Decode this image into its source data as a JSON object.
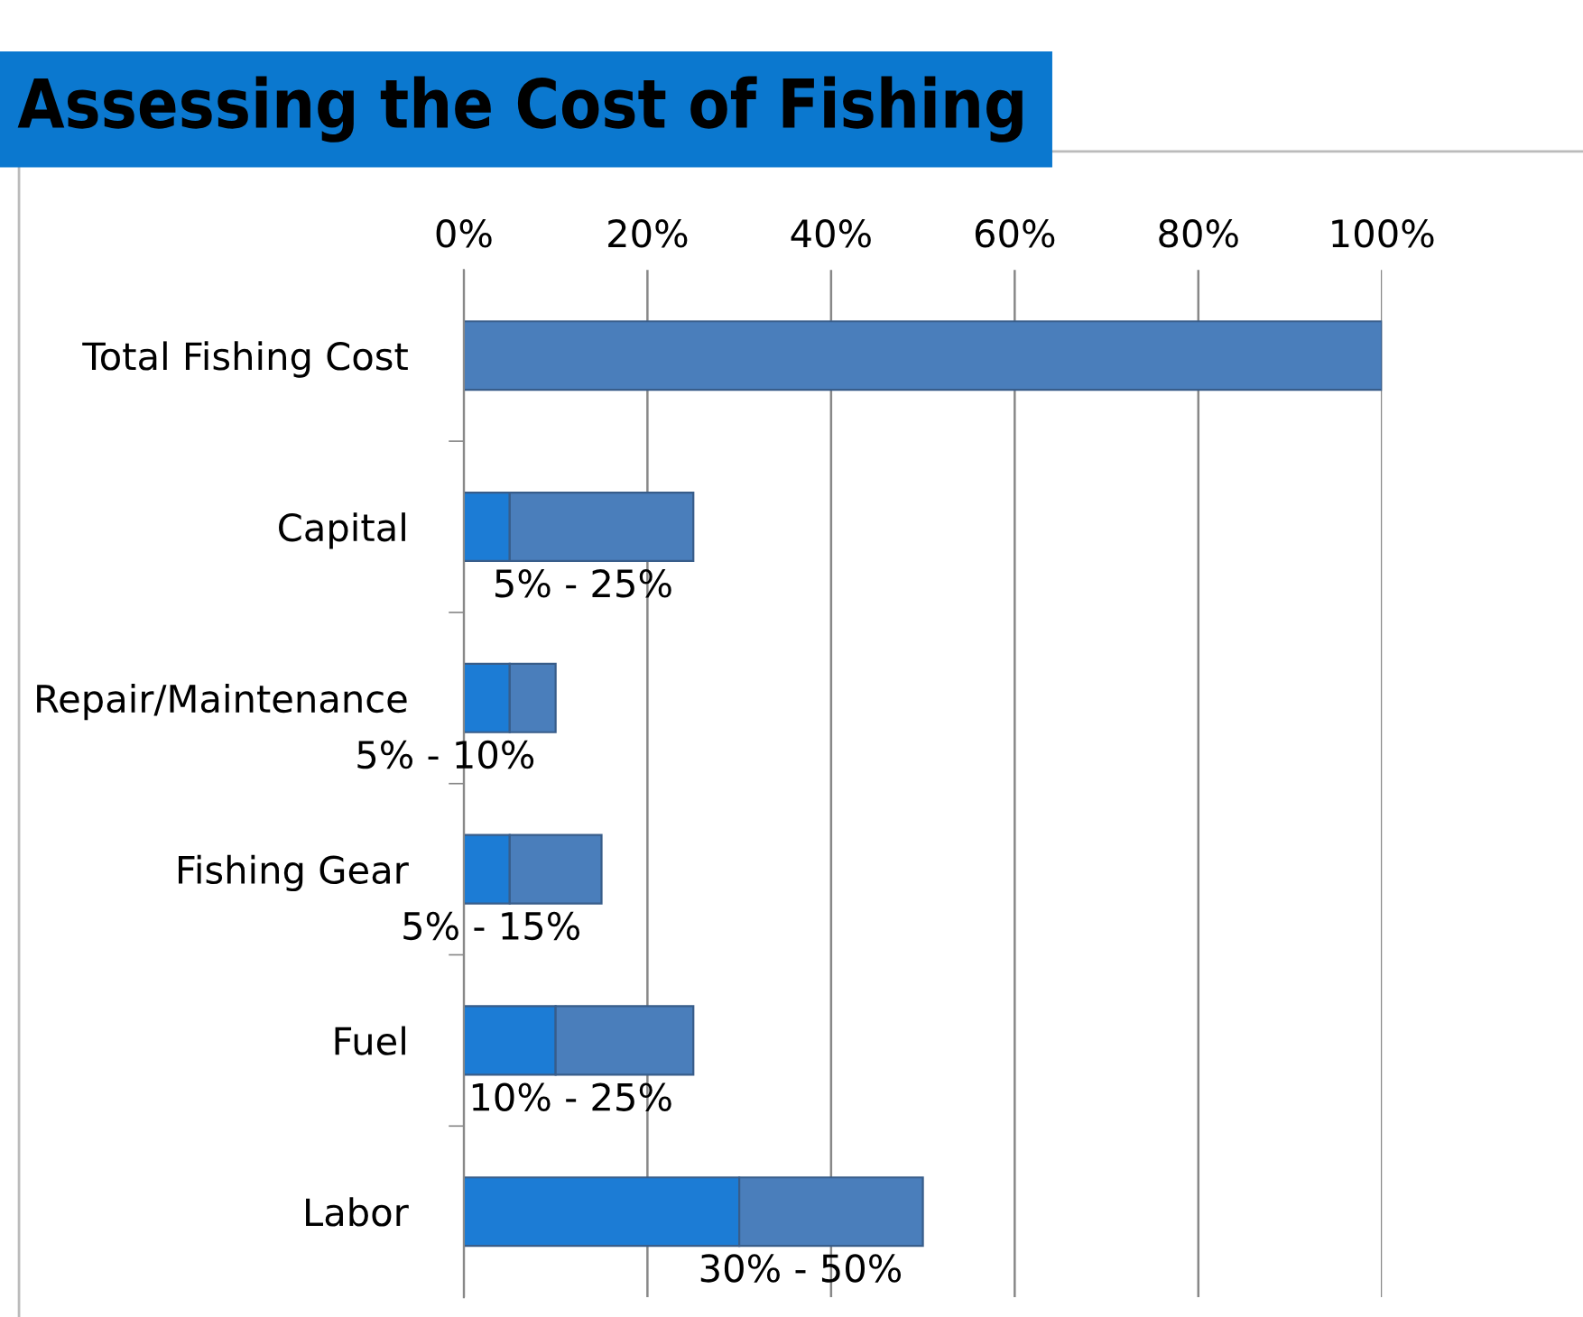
{
  "chart_data": {
    "type": "bar",
    "orientation": "horizontal",
    "stacked": true,
    "title": "Assessing the Cost of Fishing",
    "categories": [
      "Total Fishing Cost",
      "Capital",
      "Repair/Maintenance",
      "Fishing Gear",
      "Fuel",
      "Labor"
    ],
    "series": [
      {
        "color": "#1c7cd5",
        "values": [
          0,
          5,
          5,
          5,
          10,
          30
        ]
      },
      {
        "color": "#4a7ebb",
        "values": [
          100,
          20,
          5,
          10,
          15,
          20
        ]
      }
    ],
    "xlim": [
      0,
      100
    ],
    "xticks": [
      {
        "value": 0,
        "label": "0%"
      },
      {
        "value": 20,
        "label": "20%"
      },
      {
        "value": 40,
        "label": "40%"
      },
      {
        "value": 60,
        "label": "60%"
      },
      {
        "value": 80,
        "label": "80%"
      },
      {
        "value": 100,
        "label": "100%"
      }
    ],
    "grid": "x",
    "annotations": [
      {
        "text": "5% - 25%",
        "x": 25,
        "y": "Capital"
      },
      {
        "text": "5% - 10%",
        "x": 10,
        "y": "Repair/Maintenance"
      },
      {
        "text": "5% - 15%",
        "x": 15,
        "y": "Fishing Gear"
      },
      {
        "text": "10% - 25%",
        "x": 25,
        "y": "Fuel"
      },
      {
        "text": "30% - 50%",
        "x": 50,
        "y": "Labor"
      }
    ]
  }
}
